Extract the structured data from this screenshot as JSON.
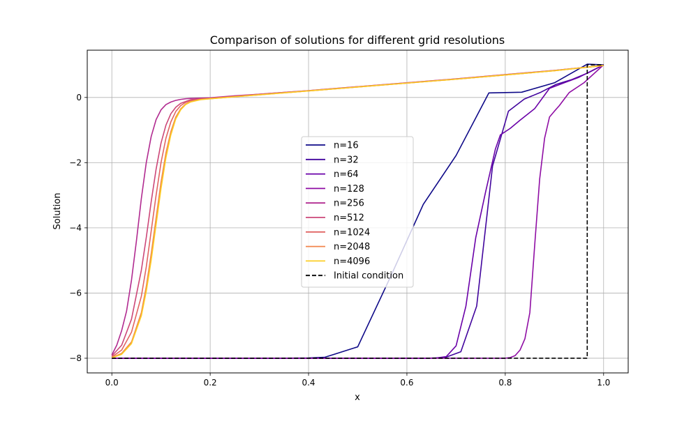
{
  "chart_data": {
    "type": "line",
    "title": "Comparison of solutions for different grid resolutions",
    "xlabel": "x",
    "ylabel": "Solution",
    "xlim": [
      -0.05,
      1.05
    ],
    "ylim": [
      -8.45,
      1.45
    ],
    "xticks": [
      0.0,
      0.2,
      0.4,
      0.6,
      0.8,
      1.0
    ],
    "xtick_labels": [
      "0.0",
      "0.2",
      "0.4",
      "0.6",
      "0.8",
      "1.0"
    ],
    "yticks": [
      -8,
      -6,
      -4,
      -2,
      0
    ],
    "ytick_labels": [
      "−8",
      "−6",
      "−4",
      "−2",
      "0"
    ],
    "grid": true,
    "legend_position": "center",
    "series": [
      {
        "name": "n=16",
        "color": "#0d0887",
        "x": [
          0.0,
          0.0667,
          0.1333,
          0.2,
          0.2667,
          0.3333,
          0.4,
          0.4333,
          0.5,
          0.5667,
          0.6333,
          0.7,
          0.7667,
          0.8333,
          0.9,
          0.9667,
          1.0
        ],
        "y": [
          -8.0,
          -8.0,
          -8.0,
          -8.0,
          -8.0,
          -8.0,
          -7.99,
          -7.97,
          -7.65,
          -5.5,
          -3.28,
          -1.78,
          0.14,
          0.16,
          0.45,
          1.02,
          1.0
        ]
      },
      {
        "name": "n=32",
        "color": "#41049d",
        "x": [
          0.0,
          0.0323,
          0.0645,
          0.0968,
          0.129,
          0.1613,
          0.1935,
          0.2258,
          0.2581,
          0.2903,
          0.3226,
          0.3548,
          0.3871,
          0.4194,
          0.4516,
          0.4839,
          0.5161,
          0.5484,
          0.5806,
          0.6129,
          0.6452,
          0.6774,
          0.7097,
          0.7419,
          0.7742,
          0.8065,
          0.8387,
          0.871,
          0.9032,
          0.9355,
          0.9677,
          1.0
        ],
        "y": [
          -8.0,
          -8.0,
          -8.0,
          -8.0,
          -8.0,
          -8.0,
          -8.0,
          -8.0,
          -8.0,
          -8.0,
          -8.0,
          -8.0,
          -8.0,
          -8.0,
          -8.0,
          -8.0,
          -8.0,
          -8.0,
          -8.0,
          -8.0,
          -8.0,
          -7.98,
          -7.8,
          -6.4,
          -2.1,
          -0.42,
          -0.05,
          0.15,
          0.4,
          0.55,
          0.75,
          1.0
        ]
      },
      {
        "name": "n=64",
        "color": "#6a00a8",
        "x": [
          0.0,
          0.6,
          0.62,
          0.64,
          0.66,
          0.68,
          0.7,
          0.72,
          0.74,
          0.76,
          0.78,
          0.79,
          0.81,
          0.83,
          0.86,
          0.89,
          0.92,
          0.95,
          0.98,
          1.0
        ],
        "y": [
          -8.0,
          -8.0,
          -8.0,
          -8.0,
          -7.99,
          -7.95,
          -7.62,
          -6.4,
          -4.3,
          -2.9,
          -1.58,
          -1.15,
          -0.95,
          -0.7,
          -0.34,
          0.28,
          0.45,
          0.62,
          0.85,
          1.0
        ]
      },
      {
        "name": "n=128",
        "color": "#8f0da4",
        "x": [
          0.0,
          0.7,
          0.74,
          0.76,
          0.8,
          0.81,
          0.82,
          0.83,
          0.84,
          0.85,
          0.86,
          0.87,
          0.88,
          0.89,
          0.9,
          0.91,
          0.92,
          0.93,
          0.96,
          1.0
        ],
        "y": [
          -8.0,
          -8.0,
          -8.0,
          -8.0,
          -8.0,
          -7.98,
          -7.92,
          -7.75,
          -7.4,
          -6.6,
          -4.5,
          -2.5,
          -1.25,
          -0.6,
          -0.42,
          -0.25,
          -0.05,
          0.15,
          0.45,
          1.0
        ]
      },
      {
        "name": "n=256",
        "color": "#b12a90",
        "x": [
          0.0,
          0.01,
          0.02,
          0.03,
          0.04,
          0.05,
          0.06,
          0.07,
          0.08,
          0.09,
          0.1,
          0.11,
          0.12,
          0.13,
          0.14,
          0.15,
          0.16,
          0.18,
          0.2,
          0.25,
          0.3,
          0.4,
          0.5,
          0.6,
          0.7,
          0.8,
          0.9,
          1.0
        ],
        "y": [
          -7.9,
          -7.6,
          -7.15,
          -6.55,
          -5.6,
          -4.4,
          -3.1,
          -2.0,
          -1.2,
          -0.68,
          -0.38,
          -0.22,
          -0.14,
          -0.09,
          -0.06,
          -0.04,
          -0.03,
          -0.02,
          -0.01,
          0.05,
          0.1,
          0.21,
          0.33,
          0.45,
          0.57,
          0.7,
          0.83,
          0.98
        ]
      },
      {
        "name": "n=512",
        "color": "#cc4778",
        "x": [
          0.0,
          0.02,
          0.04,
          0.06,
          0.07,
          0.08,
          0.09,
          0.1,
          0.11,
          0.12,
          0.13,
          0.14,
          0.16,
          0.18,
          0.2,
          0.25,
          0.3,
          0.4,
          0.5,
          0.6,
          0.7,
          0.8,
          0.9,
          1.0
        ],
        "y": [
          -7.93,
          -7.6,
          -6.8,
          -5.3,
          -4.3,
          -3.2,
          -2.2,
          -1.4,
          -0.85,
          -0.5,
          -0.3,
          -0.18,
          -0.07,
          -0.04,
          -0.02,
          0.04,
          0.1,
          0.21,
          0.33,
          0.45,
          0.57,
          0.7,
          0.83,
          0.98
        ]
      },
      {
        "name": "n=1024",
        "color": "#e16462",
        "x": [
          0.0,
          0.02,
          0.04,
          0.06,
          0.07,
          0.08,
          0.09,
          0.1,
          0.11,
          0.12,
          0.13,
          0.14,
          0.15,
          0.16,
          0.18,
          0.2,
          0.25,
          0.3,
          0.4,
          0.5,
          0.6,
          0.7,
          0.8,
          0.9,
          1.0
        ],
        "y": [
          -7.96,
          -7.75,
          -7.2,
          -6.1,
          -5.2,
          -4.1,
          -3.0,
          -2.0,
          -1.25,
          -0.75,
          -0.43,
          -0.25,
          -0.15,
          -0.1,
          -0.05,
          -0.03,
          0.03,
          0.09,
          0.2,
          0.32,
          0.44,
          0.56,
          0.69,
          0.82,
          0.98
        ]
      },
      {
        "name": "n=2048",
        "color": "#f2844b",
        "x": [
          0.0,
          0.02,
          0.04,
          0.06,
          0.07,
          0.08,
          0.09,
          0.1,
          0.11,
          0.12,
          0.13,
          0.14,
          0.15,
          0.16,
          0.18,
          0.2,
          0.25,
          0.3,
          0.4,
          0.5,
          0.6,
          0.7,
          0.8,
          0.9,
          1.0
        ],
        "y": [
          -7.98,
          -7.85,
          -7.5,
          -6.6,
          -5.8,
          -4.8,
          -3.7,
          -2.6,
          -1.7,
          -1.05,
          -0.6,
          -0.35,
          -0.2,
          -0.13,
          -0.06,
          -0.04,
          0.02,
          0.08,
          0.2,
          0.32,
          0.44,
          0.56,
          0.69,
          0.82,
          0.98
        ]
      },
      {
        "name": "n=4096",
        "color": "#fcce25",
        "x": [
          0.0,
          0.02,
          0.04,
          0.06,
          0.07,
          0.08,
          0.09,
          0.1,
          0.11,
          0.12,
          0.13,
          0.14,
          0.15,
          0.16,
          0.18,
          0.2,
          0.25,
          0.3,
          0.4,
          0.5,
          0.6,
          0.7,
          0.8,
          0.9,
          1.0
        ],
        "y": [
          -7.99,
          -7.88,
          -7.55,
          -6.7,
          -5.95,
          -5.0,
          -3.9,
          -2.8,
          -1.85,
          -1.15,
          -0.66,
          -0.38,
          -0.22,
          -0.14,
          -0.07,
          -0.04,
          0.02,
          0.08,
          0.2,
          0.32,
          0.44,
          0.56,
          0.69,
          0.82,
          0.98
        ]
      },
      {
        "name": "Initial condition",
        "color": "#000000",
        "dashed": true,
        "x": [
          0.0,
          0.9667,
          0.9667,
          1.0
        ],
        "y": [
          -8.0,
          -8.0,
          1.0,
          1.0
        ]
      }
    ]
  }
}
